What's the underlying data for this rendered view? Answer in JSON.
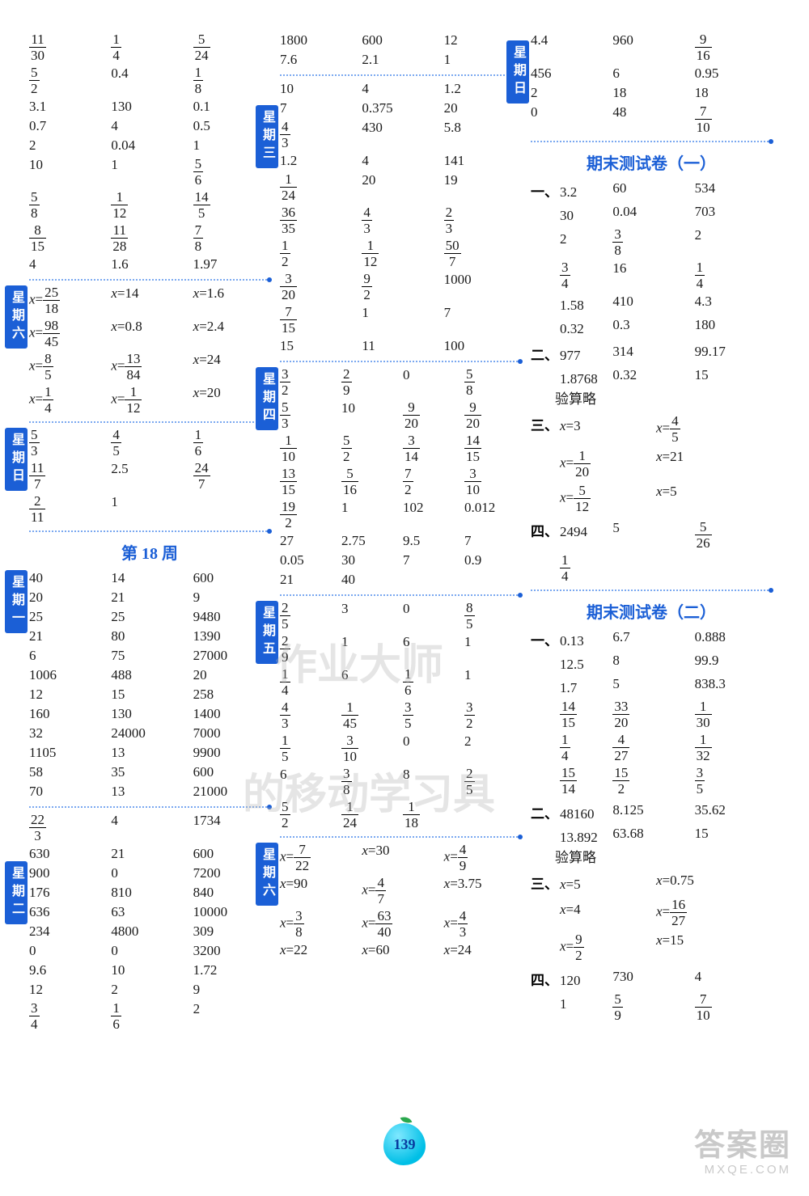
{
  "page_number": "139",
  "watermark": {
    "line1": "答案圈",
    "line2": "MXQE.COM"
  },
  "center_wm": {
    "line1": "作业大师",
    "line2": "的移动学习具"
  },
  "headings": {
    "week18": "第 18 周",
    "final1": "期末测试卷（一）",
    "final2": "期末测试卷（二）"
  },
  "day_labels": {
    "sat": "星期六",
    "sun": "星期日",
    "mon": "星期一",
    "tue": "星期二",
    "wed": "星期三",
    "thu": "星期四",
    "fri": "星期五"
  },
  "col1": {
    "top_grid": [
      [
        "11/30",
        "1/4",
        "5/24"
      ],
      [
        "5/2",
        "0.4",
        "1/8"
      ],
      [
        "3.1",
        "130",
        "0.1"
      ],
      [
        "0.7",
        "4",
        "0.5"
      ],
      [
        "2",
        "0.04",
        "1"
      ],
      [
        "10",
        "1",
        "5/6"
      ],
      [
        "5/8",
        "1/12",
        "14/5"
      ],
      [
        "8/15",
        "11/28",
        "7/8"
      ],
      [
        "4",
        "1.6",
        "1.97"
      ]
    ],
    "sat_eq": [
      [
        "x=25/18",
        "x=14",
        "x=1.6"
      ],
      [
        "x=98/45",
        "x=0.8",
        "x=2.4"
      ],
      [
        "x=8/5",
        "x=13/84",
        "x=24"
      ],
      [
        "x=1/4",
        "x=1/12",
        "x=20"
      ]
    ],
    "sun_grid": [
      [
        "5/3",
        "4/5",
        "1/6"
      ],
      [
        "11/7",
        "2.5",
        "24/7"
      ],
      [
        "2/11",
        "1",
        ""
      ]
    ],
    "mon_grid": [
      [
        "40",
        "14",
        "600"
      ],
      [
        "20",
        "21",
        "9"
      ],
      [
        "25",
        "25",
        "9480"
      ],
      [
        "21",
        "80",
        "1390"
      ],
      [
        "6",
        "75",
        "27000"
      ],
      [
        "1006",
        "488",
        "20"
      ],
      [
        "12",
        "15",
        "258"
      ],
      [
        "160",
        "130",
        "1400"
      ],
      [
        "32",
        "24000",
        "7000"
      ],
      [
        "1105",
        "13",
        "9900"
      ],
      [
        "58",
        "35",
        "600"
      ],
      [
        "70",
        "13",
        "21000"
      ]
    ],
    "tue_grid": [
      [
        "22/3",
        "4",
        "1734"
      ],
      [
        "630",
        "21",
        "600"
      ],
      [
        "900",
        "0",
        "7200"
      ],
      [
        "176",
        "810",
        "840"
      ],
      [
        "636",
        "63",
        "10000"
      ],
      [
        "234",
        "4800",
        "309"
      ],
      [
        "0",
        "0",
        "3200"
      ],
      [
        "9.6",
        "10",
        "1.72"
      ],
      [
        "12",
        "2",
        "9"
      ],
      [
        "3/4",
        "1/6",
        "2"
      ]
    ]
  },
  "col2": {
    "top_grid": [
      [
        "1800",
        "600",
        "12"
      ],
      [
        "7.6",
        "2.1",
        "1"
      ]
    ],
    "wed_grid": [
      [
        "10",
        "4",
        "1.2"
      ],
      [
        "7",
        "0.375",
        "20"
      ],
      [
        "4/3",
        "430",
        "5.8"
      ],
      [
        "1.2",
        "4",
        "141"
      ],
      [
        "1/24",
        "20",
        "19"
      ],
      [
        "36/35",
        "4/3",
        "2/3"
      ],
      [
        "1/2",
        "1/12",
        "50/7"
      ],
      [
        "3/20",
        "9/2",
        "1000"
      ],
      [
        "7/15",
        "1",
        "7"
      ],
      [
        "15",
        "11",
        "100"
      ]
    ],
    "thu_grid": [
      [
        "3/2",
        "2/9",
        "0",
        "5/8"
      ],
      [
        "5/3",
        "10",
        "9/20",
        "9/20"
      ],
      [
        "1/10",
        "5/2",
        "3/14",
        "14/15"
      ],
      [
        "13/15",
        "5/16",
        "7/2",
        "3/10"
      ],
      [
        "19/2",
        "1",
        "102",
        "0.012"
      ],
      [
        "27",
        "2.75",
        "9.5",
        "7"
      ],
      [
        "0.05",
        "30",
        "7",
        "0.9"
      ],
      [
        "21",
        "40",
        "",
        ""
      ]
    ],
    "fri_grid": [
      [
        "2/5",
        "3",
        "0",
        "8/5"
      ],
      [
        "2/9",
        "1",
        "6",
        "1"
      ],
      [
        "1/4",
        "6",
        "1/6",
        "1"
      ],
      [
        "4/3",
        "1/45",
        "3/5",
        "3/2"
      ],
      [
        "1/5",
        "3/10",
        "0",
        "2"
      ],
      [
        "6",
        "3/8",
        "8",
        "2/5"
      ],
      [
        "5/2",
        "1/24",
        "1/18",
        ""
      ]
    ],
    "sat_eq": [
      [
        "x=7/22",
        "x=30",
        "x=4/9"
      ],
      [
        "x=90",
        "x=4/7",
        "x=3.75"
      ],
      [
        "x=3/8",
        "x=63/40",
        "x=4/3"
      ],
      [
        "x=22",
        "x=60",
        "x=24"
      ]
    ]
  },
  "col3": {
    "top_grid": [
      [
        "4.4",
        "960",
        "9/16"
      ],
      [
        "456",
        "6",
        "0.95"
      ],
      [
        "2",
        "18",
        "18"
      ],
      [
        "0",
        "48",
        "7/10"
      ]
    ],
    "final1": {
      "s1": [
        [
          "3.2",
          "60",
          "534"
        ],
        [
          "30",
          "0.04",
          "703"
        ],
        [
          "2",
          "3/8",
          "2"
        ],
        [
          "3/4",
          "16",
          "1/4"
        ],
        [
          "1.58",
          "410",
          "4.3"
        ],
        [
          "0.32",
          "0.3",
          "180"
        ]
      ],
      "s2": [
        [
          "977",
          "314",
          "99.17"
        ],
        [
          "1.8768",
          "0.32",
          "15"
        ]
      ],
      "s2_note": "验算略",
      "s3": [
        [
          "x=3",
          "x=4/5"
        ],
        [
          "x=1/20",
          "x=21"
        ],
        [
          "x=5/12",
          "x=5"
        ]
      ],
      "s4": [
        [
          "2494",
          "5",
          "5/26"
        ],
        [
          "1/4",
          "",
          ""
        ]
      ]
    },
    "final2": {
      "s1": [
        [
          "0.13",
          "6.7",
          "0.888"
        ],
        [
          "12.5",
          "8",
          "99.9"
        ],
        [
          "1.7",
          "5",
          "838.3"
        ],
        [
          "14/15",
          "33/20",
          "1/30"
        ],
        [
          "1/4",
          "4/27",
          "1/32"
        ],
        [
          "15/14",
          "15/2",
          "3/5"
        ]
      ],
      "s2": [
        [
          "48160",
          "8.125",
          "35.62"
        ],
        [
          "13.892",
          "63.68",
          "15"
        ]
      ],
      "s2_note": "验算略",
      "s3": [
        [
          "x=5",
          "x=0.75"
        ],
        [
          "x=4",
          "x=16/27"
        ],
        [
          "x=9/2",
          "x=15"
        ]
      ],
      "s4": [
        [
          "120",
          "730",
          "4"
        ],
        [
          "1",
          "5/9",
          "7/10"
        ]
      ]
    }
  }
}
